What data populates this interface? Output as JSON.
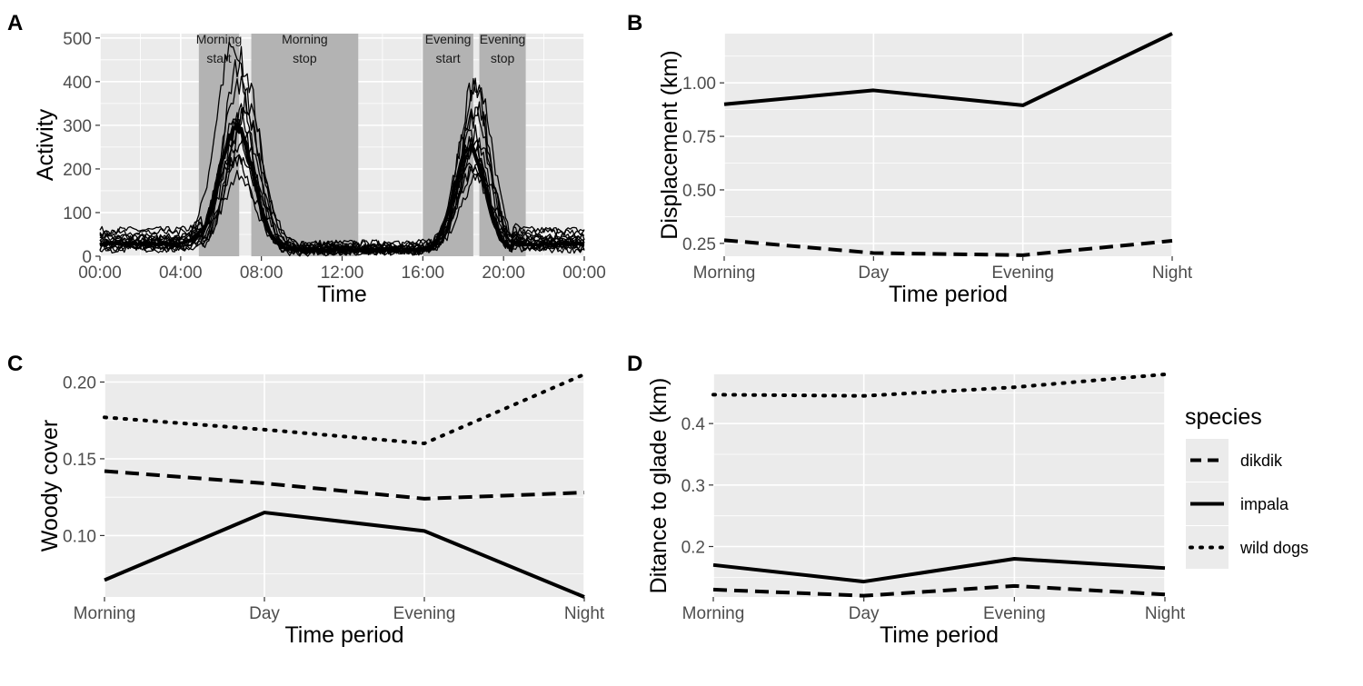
{
  "panel_labels": [
    "A",
    "B",
    "C",
    "D"
  ],
  "colors": {
    "panel_bg": "#ebebeb",
    "grid": "#ffffff",
    "band": "#b3b3b3",
    "line": "#000000"
  },
  "legend": {
    "title": "species",
    "items": [
      {
        "label": "dikdik",
        "dash": "dashed"
      },
      {
        "label": "impala",
        "dash": "solid"
      },
      {
        "label": "wild dogs",
        "dash": "dotted"
      }
    ]
  },
  "chart_data": [
    {
      "panel": "A",
      "type": "line",
      "xlabel": "Time",
      "ylabel": "Activity",
      "xlim": [
        0,
        24
      ],
      "ylim": [
        0,
        510
      ],
      "x_ticks": [
        0,
        4,
        8,
        12,
        16,
        20,
        24
      ],
      "x_tick_labels": [
        "00:00",
        "04:00",
        "08:00",
        "12:00",
        "16:00",
        "20:00",
        "00:00"
      ],
      "y_ticks": [
        0,
        100,
        200,
        300,
        400,
        500
      ],
      "bands": [
        {
          "label_line1": "Morning",
          "label_line2": "start",
          "from": 4.9,
          "to": 6.9
        },
        {
          "label_line1": "Morning",
          "label_line2": "stop",
          "from": 7.5,
          "to": 12.8
        },
        {
          "label_line1": "Evening",
          "label_line2": "start",
          "from": 16.0,
          "to": 18.5
        },
        {
          "label_line1": "Evening",
          "label_line2": "stop",
          "from": 18.8,
          "to": 21.1
        }
      ],
      "peak_centers": {
        "morning": 6.9,
        "evening": 18.5
      },
      "series_peaks": [
        {
          "morning": 455,
          "evening": 380,
          "base": 30
        },
        {
          "morning": 420,
          "evening": 360,
          "base": 60
        },
        {
          "morning": 380,
          "evening": 330,
          "base": 25
        },
        {
          "morning": 330,
          "evening": 300,
          "base": 45
        },
        {
          "morning": 310,
          "evening": 280,
          "base": 20
        },
        {
          "morning": 300,
          "evening": 260,
          "base": 35
        },
        {
          "morning": 290,
          "evening": 250,
          "base": 15
        },
        {
          "morning": 280,
          "evening": 240,
          "base": 40
        },
        {
          "morning": 270,
          "evening": 230,
          "base": 25
        },
        {
          "morning": 260,
          "evening": 215,
          "base": 55
        },
        {
          "morning": 240,
          "evening": 200,
          "base": 30
        },
        {
          "morning": 220,
          "evening": 185,
          "base": 20
        },
        {
          "morning": 200,
          "evening": 170,
          "base": 45
        },
        {
          "morning": 170,
          "evening": 160,
          "base": 35
        }
      ],
      "mean_line": {
        "morning": 280,
        "evening": 235,
        "base": 28
      }
    },
    {
      "panel": "B",
      "type": "line",
      "xlabel": "Time period",
      "ylabel": "Displacement (km)",
      "categories": [
        "Morning",
        "Day",
        "Evening",
        "Night"
      ],
      "ylim": [
        0.19,
        1.23
      ],
      "y_ticks": [
        0.25,
        0.5,
        0.75,
        1.0
      ],
      "y_tick_labels": [
        "0.25",
        "0.50",
        "0.75",
        "1.00"
      ],
      "series": [
        {
          "name": "impala",
          "dash": "solid",
          "values": [
            0.9,
            0.965,
            0.895,
            1.23
          ]
        },
        {
          "name": "dikdik",
          "dash": "dashed",
          "values": [
            0.265,
            0.205,
            0.195,
            0.262
          ]
        }
      ]
    },
    {
      "panel": "C",
      "type": "line",
      "xlabel": "Time period",
      "ylabel": "Woody cover",
      "categories": [
        "Morning",
        "Day",
        "Evening",
        "Night"
      ],
      "ylim": [
        0.06,
        0.205
      ],
      "y_ticks": [
        0.1,
        0.15,
        0.2
      ],
      "y_tick_labels": [
        "0.10",
        "0.15",
        "0.20"
      ],
      "series": [
        {
          "name": "wild dogs",
          "dash": "dotted",
          "values": [
            0.177,
            0.169,
            0.16,
            0.205
          ]
        },
        {
          "name": "dikdik",
          "dash": "dashed",
          "values": [
            0.142,
            0.134,
            0.124,
            0.128
          ]
        },
        {
          "name": "impala",
          "dash": "solid",
          "values": [
            0.071,
            0.115,
            0.103,
            0.06
          ]
        }
      ]
    },
    {
      "panel": "D",
      "type": "line",
      "xlabel": "Time period",
      "ylabel": "Ditance to glade (km)",
      "categories": [
        "Morning",
        "Day",
        "Evening",
        "Night"
      ],
      "ylim": [
        0.118,
        0.48
      ],
      "y_ticks": [
        0.2,
        0.3,
        0.4
      ],
      "y_tick_labels": [
        "0.2",
        "0.3",
        "0.4"
      ],
      "series": [
        {
          "name": "wild dogs",
          "dash": "dotted",
          "values": [
            0.447,
            0.445,
            0.459,
            0.48
          ]
        },
        {
          "name": "impala",
          "dash": "solid",
          "values": [
            0.17,
            0.143,
            0.18,
            0.165
          ]
        },
        {
          "name": "dikdik",
          "dash": "dashed",
          "values": [
            0.13,
            0.12,
            0.136,
            0.122
          ]
        }
      ]
    }
  ]
}
